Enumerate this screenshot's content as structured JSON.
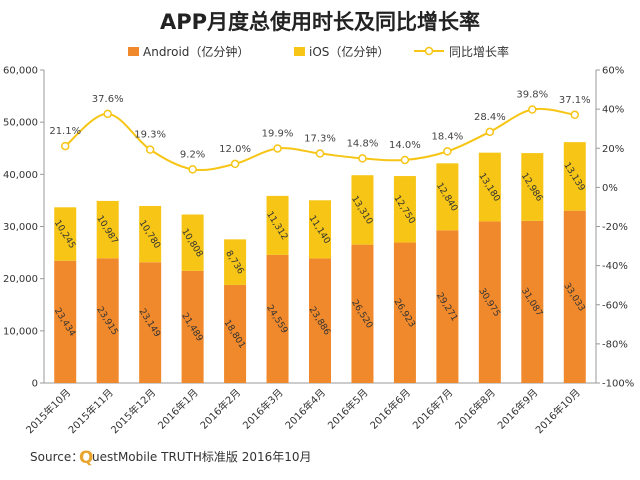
{
  "chart_data": {
    "type": "bar",
    "stacked": true,
    "title": "APP月度总使用时长及同比增长率",
    "categories": [
      "2015年10月",
      "2015年11月",
      "2015年12月",
      "2016年1月",
      "2016年2月",
      "2016年3月",
      "2016年4月",
      "2016年5月",
      "2016年6月",
      "2016年7月",
      "2016年8月",
      "2016年9月",
      "2016年10月"
    ],
    "series": [
      {
        "name": "Android（亿分钟）",
        "type": "bar",
        "axis": "left",
        "color": "#f0892b",
        "values": [
          23434,
          23915,
          23149,
          21489,
          18801,
          24559,
          23886,
          26520,
          26923,
          29271,
          30975,
          31087,
          33033
        ],
        "labels": [
          "23,434",
          "23,915",
          "23,149",
          "21,489",
          "18,801",
          "24,559",
          "23,886",
          "26,520",
          "26,923",
          "29,271",
          "30,975",
          "31,087",
          "33,033"
        ]
      },
      {
        "name": "iOS（亿分钟）",
        "type": "bar",
        "axis": "left",
        "color": "#f6c515",
        "values": [
          10245,
          10987,
          10780,
          10808,
          8736,
          11312,
          11140,
          13310,
          12750,
          12840,
          13180,
          12986,
          13139
        ],
        "labels": [
          "10,245",
          "10,987",
          "10,780",
          "10,808",
          "8,736",
          "11,312",
          "11,140",
          "13,310",
          "12,750",
          "12,840",
          "13,180",
          "12,986",
          "13,139"
        ]
      },
      {
        "name": "同比增长率",
        "type": "line",
        "axis": "right",
        "color": "#f6c515",
        "values": [
          21.1,
          37.6,
          19.3,
          9.2,
          12.0,
          19.9,
          17.3,
          14.8,
          14.0,
          18.4,
          28.4,
          39.8,
          37.1
        ],
        "labels": [
          "21.1%",
          "37.6%",
          "19.3%",
          "9.2%",
          "12.0%",
          "19.9%",
          "17.3%",
          "14.8%",
          "14.0%",
          "18.4%",
          "28.4%",
          "39.8%",
          "37.1%"
        ]
      }
    ],
    "y_left": {
      "range": [
        0,
        60000
      ],
      "ticks": [
        "0",
        "10,000",
        "20,000",
        "30,000",
        "40,000",
        "50,000",
        "60,000"
      ]
    },
    "y_right": {
      "range": [
        -100,
        60
      ],
      "ticks": [
        "-100%",
        "-80%",
        "-60%",
        "-40%",
        "-20%",
        "0%",
        "20%",
        "40%",
        "60%"
      ]
    },
    "grid": false,
    "legend_position": "top"
  },
  "source": {
    "prefix": "Source：",
    "q": "Q",
    "rest": "uestMobile TRUTH标准版 2016年10月"
  }
}
